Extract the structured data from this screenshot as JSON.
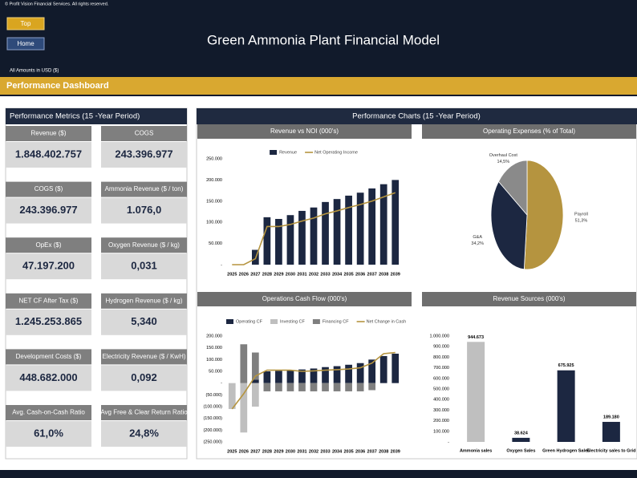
{
  "header": {
    "copyright": "© Profit Vision Financial Services. All rights reserved.",
    "buttons": [
      "Top",
      "Home"
    ],
    "title": "Green Ammonia Plant Financial Model",
    "currency_note": "All Amounts in  USD ($)",
    "section": "Performance Dashboard"
  },
  "metrics": {
    "title": "Performance Metrics (15 -Year Period)",
    "items": [
      {
        "label": "Revenue ($)",
        "value": "1.848.402.757"
      },
      {
        "label": "COGS",
        "value": "243.396.977"
      },
      {
        "label": "COGS ($)",
        "value": "243.396.977"
      },
      {
        "label": "Ammonia Revenue ($ / ton)",
        "value": "1.076,0"
      },
      {
        "label": "OpEx ($)",
        "value": "47.197.200"
      },
      {
        "label": "Oxygen Revenue ($ / kg)",
        "value": "0,031"
      },
      {
        "label": "NET CF After Tax ($)",
        "value": "1.245.253.865"
      },
      {
        "label": "Hydrogen Revenue ($ / kg)",
        "value": "5,340"
      },
      {
        "label": "Development Costs ($)",
        "value": "448.682.000"
      },
      {
        "label": "Electricity Revenue ($ / KwH)",
        "value": "0,092"
      },
      {
        "label": "Avg. Cash-on-Cash Ratio",
        "value": "61,0%"
      },
      {
        "label": "Avg Free & Clear Return Ratio",
        "value": "24,8%"
      }
    ]
  },
  "charts_title": "Performance Charts (15 -Year Period)",
  "chart_data": [
    {
      "type": "combo",
      "title": "Revenue vs NOI (000's)",
      "categories": [
        "2025",
        "2026",
        "2027",
        "2028",
        "2029",
        "2030",
        "2031",
        "2032",
        "2033",
        "2034",
        "2035",
        "2036",
        "2037",
        "2038",
        "2039"
      ],
      "series": [
        {
          "name": "Revenue",
          "kind": "bar",
          "color": "#1c2741",
          "values": [
            0,
            0,
            35000,
            112000,
            108000,
            117000,
            127000,
            135000,
            148000,
            155000,
            163000,
            170000,
            180000,
            190000,
            200000
          ]
        },
        {
          "name": "Net Operating Income",
          "kind": "line",
          "color": "#b5943f",
          "values": [
            0,
            0,
            14000,
            90000,
            90000,
            95000,
            103000,
            110000,
            120000,
            127000,
            135000,
            142000,
            150000,
            160000,
            170000
          ]
        }
      ],
      "ylim": [
        0,
        250000
      ],
      "yticks": [
        {
          "value": 0,
          "label": "-"
        },
        {
          "value": 50000,
          "label": "50.000"
        },
        {
          "value": 100000,
          "label": "100.000"
        },
        {
          "value": 150000,
          "label": "150.000"
        },
        {
          "value": 200000,
          "label": "200.000"
        },
        {
          "value": 250000,
          "label": "250.000"
        }
      ]
    },
    {
      "type": "pie",
      "title": "Operating Expenses (% of Total)",
      "categories": [
        "Payroll",
        "G&A",
        "Overhaul Cost"
      ],
      "values": [
        51.3,
        34.2,
        14.5
      ],
      "value_labels": [
        "51,3%",
        "34,2%",
        "14,5%"
      ],
      "colors": [
        "#b5943f",
        "#1c2741",
        "#8a8a8a"
      ]
    },
    {
      "type": "combo",
      "title": "Operations Cash Flow (000's)",
      "stacked": true,
      "categories": [
        "2025",
        "2026",
        "2027",
        "2028",
        "2029",
        "2030",
        "2031",
        "2032",
        "2033",
        "2034",
        "2035",
        "2036",
        "2037",
        "2038",
        "2039"
      ],
      "series": [
        {
          "name": "Operating CF",
          "kind": "bar",
          "color": "#1c2741",
          "values": [
            0,
            0,
            15000,
            50000,
            52000,
            55000,
            58000,
            62000,
            68000,
            72000,
            78000,
            85000,
            100000,
            115000,
            125000
          ]
        },
        {
          "name": "Investing CF",
          "kind": "bar",
          "color": "#bfbfbf",
          "values": [
            -110000,
            -210000,
            -100000,
            0,
            0,
            0,
            0,
            0,
            0,
            0,
            0,
            0,
            0,
            0,
            0
          ]
        },
        {
          "name": "Financing CF",
          "kind": "bar",
          "color": "#7f7f7f",
          "values": [
            0,
            165000,
            115000,
            -35000,
            -35000,
            -35000,
            -35000,
            -35000,
            -35000,
            -35000,
            -35000,
            -35000,
            -30000,
            0,
            0
          ]
        },
        {
          "name": "Net Change in Cash",
          "kind": "line",
          "color": "#b5943f",
          "values": [
            -110000,
            -45000,
            30000,
            55000,
            55000,
            55000,
            50000,
            52000,
            55000,
            57000,
            60000,
            65000,
            85000,
            125000,
            130000
          ]
        }
      ],
      "ylim": [
        -250000,
        200000
      ],
      "yticks": [
        {
          "value": -250000,
          "label": "(250.000)"
        },
        {
          "value": -200000,
          "label": "(200.000)"
        },
        {
          "value": -150000,
          "label": "(150.000)"
        },
        {
          "value": -100000,
          "label": "(100.000)"
        },
        {
          "value": -50000,
          "label": "(50.000)"
        },
        {
          "value": 0,
          "label": "-"
        },
        {
          "value": 50000,
          "label": "50.000"
        },
        {
          "value": 100000,
          "label": "100.000"
        },
        {
          "value": 150000,
          "label": "150.000"
        },
        {
          "value": 200000,
          "label": "200.000"
        }
      ]
    },
    {
      "type": "bar",
      "title": "Revenue Sources (000's)",
      "categories": [
        "Ammonia sales",
        "Oxygen Sales",
        "Green Hydrogen Sales",
        "Electricity sales to Grid"
      ],
      "values": [
        944673,
        38624,
        675925,
        189180
      ],
      "value_labels": [
        "944.673",
        "38.624",
        "675.925",
        "189.180"
      ],
      "colors": [
        "#bfbfbf",
        "#1c2741",
        "#1c2741",
        "#1c2741"
      ],
      "ylim": [
        0,
        1000000
      ],
      "yticks": [
        {
          "value": 0,
          "label": "-"
        },
        {
          "value": 100000,
          "label": "100.000"
        },
        {
          "value": 200000,
          "label": "200.000"
        },
        {
          "value": 300000,
          "label": "300.000"
        },
        {
          "value": 400000,
          "label": "400.000"
        },
        {
          "value": 500000,
          "label": "500.000"
        },
        {
          "value": 600000,
          "label": "600.000"
        },
        {
          "value": 700000,
          "label": "700.000"
        },
        {
          "value": 800000,
          "label": "800.000"
        },
        {
          "value": 900000,
          "label": "900.000"
        },
        {
          "value": 1000000,
          "label": "1.000.000"
        }
      ]
    }
  ]
}
